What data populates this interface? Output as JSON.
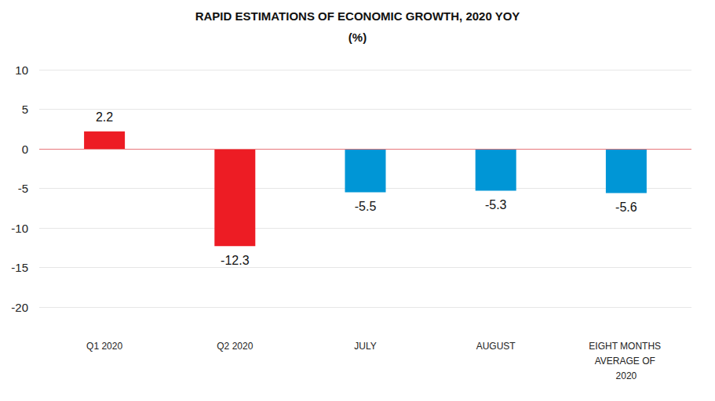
{
  "chart_data": {
    "type": "bar",
    "title": "RAPID ESTIMATIONS OF ECONOMIC GROWTH, 2020 YOY",
    "subtitle": "(%)",
    "categories": [
      "Q1 2020",
      "Q2 2020",
      "JULY",
      "AUGUST",
      "EIGHT MONTHS AVERAGE OF 2020"
    ],
    "values": [
      2.2,
      -12.3,
      -5.5,
      -5.3,
      -5.6
    ],
    "colors": [
      "#ed1c24",
      "#ed1c24",
      "#0096d6",
      "#0096d6",
      "#0096d6"
    ],
    "ylim": [
      -20,
      10
    ],
    "yticks": [
      -20,
      -15,
      -10,
      -5,
      0,
      5,
      10
    ],
    "grid": true,
    "data_labels": true
  }
}
